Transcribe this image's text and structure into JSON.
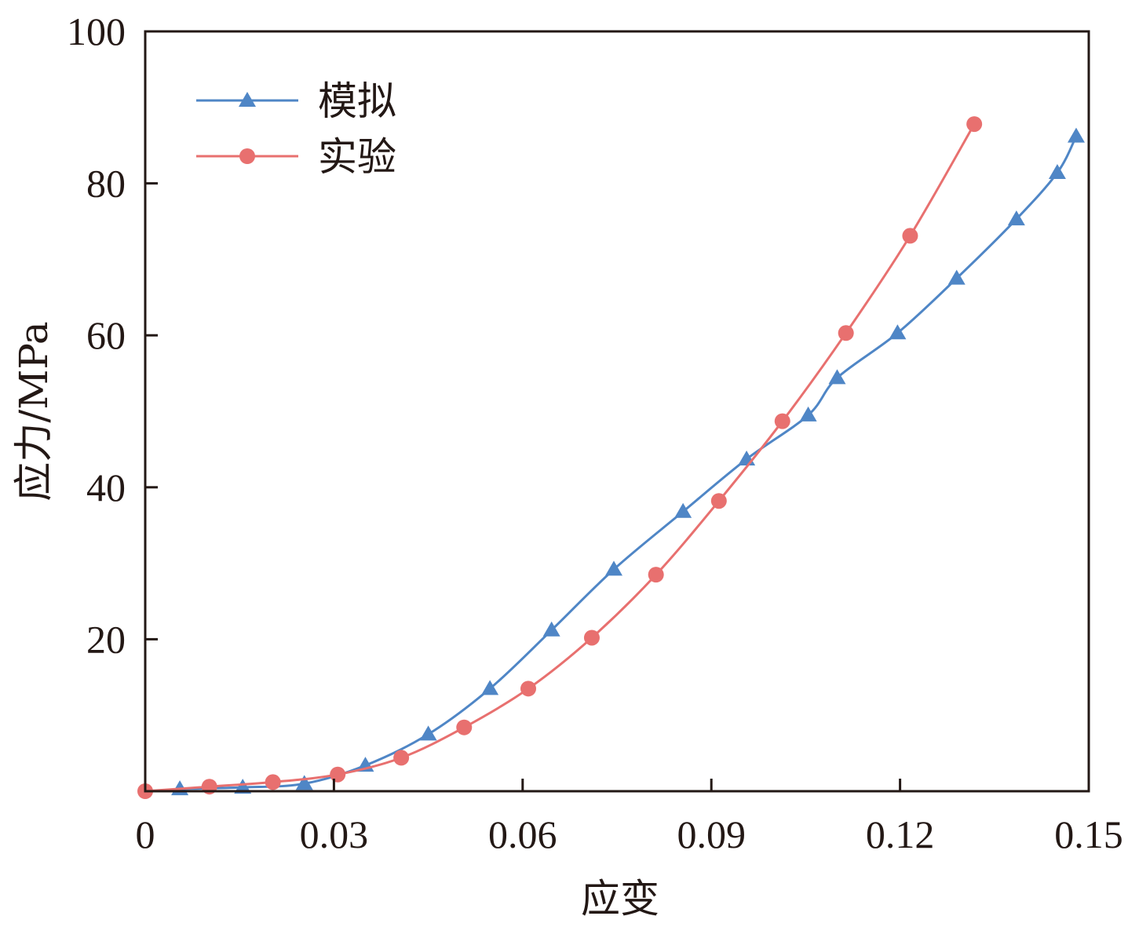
{
  "chart_data": {
    "type": "line",
    "title": "",
    "xlabel": "应变",
    "ylabel": "应力/MPa",
    "xlim": [
      0,
      0.15
    ],
    "ylim": [
      0,
      100
    ],
    "xticks": [
      0,
      0.03,
      0.06,
      0.09,
      0.12,
      0.15
    ],
    "xtick_labels": [
      "0",
      "0.03",
      "0.06",
      "0.09",
      "0.12",
      "0.15"
    ],
    "yticks": [
      20,
      40,
      60,
      80,
      100
    ],
    "ytick_labels": [
      "20",
      "40",
      "60",
      "80",
      "100"
    ],
    "grid": false,
    "legend_position": "top-left",
    "series": [
      {
        "name": "模拟",
        "color": "#4f86c6",
        "marker": "triangle",
        "x": [
          0.0055,
          0.0155,
          0.0253,
          0.035,
          0.045,
          0.0548,
          0.0646,
          0.0745,
          0.0855,
          0.0956,
          0.1054,
          0.11,
          0.1196,
          0.129,
          0.1385,
          0.145,
          0.148
        ],
        "y": [
          0.3,
          0.5,
          1.0,
          3.4,
          7.5,
          13.5,
          21.2,
          29.2,
          36.8,
          43.7,
          49.5,
          54.4,
          60.3,
          67.5,
          75.3,
          81.4,
          86.2
        ]
      },
      {
        "name": "实验",
        "color": "#e8706f",
        "marker": "circle",
        "x": [
          0,
          0.0102,
          0.0203,
          0.0306,
          0.0407,
          0.0507,
          0.0609,
          0.071,
          0.0812,
          0.0912,
          0.1013,
          0.1114,
          0.1216,
          0.1318
        ],
        "y": [
          0,
          0.6,
          1.2,
          2.2,
          4.4,
          8.4,
          13.5,
          20.2,
          28.5,
          38.2,
          48.7,
          60.3,
          73.1,
          87.8
        ]
      }
    ]
  }
}
